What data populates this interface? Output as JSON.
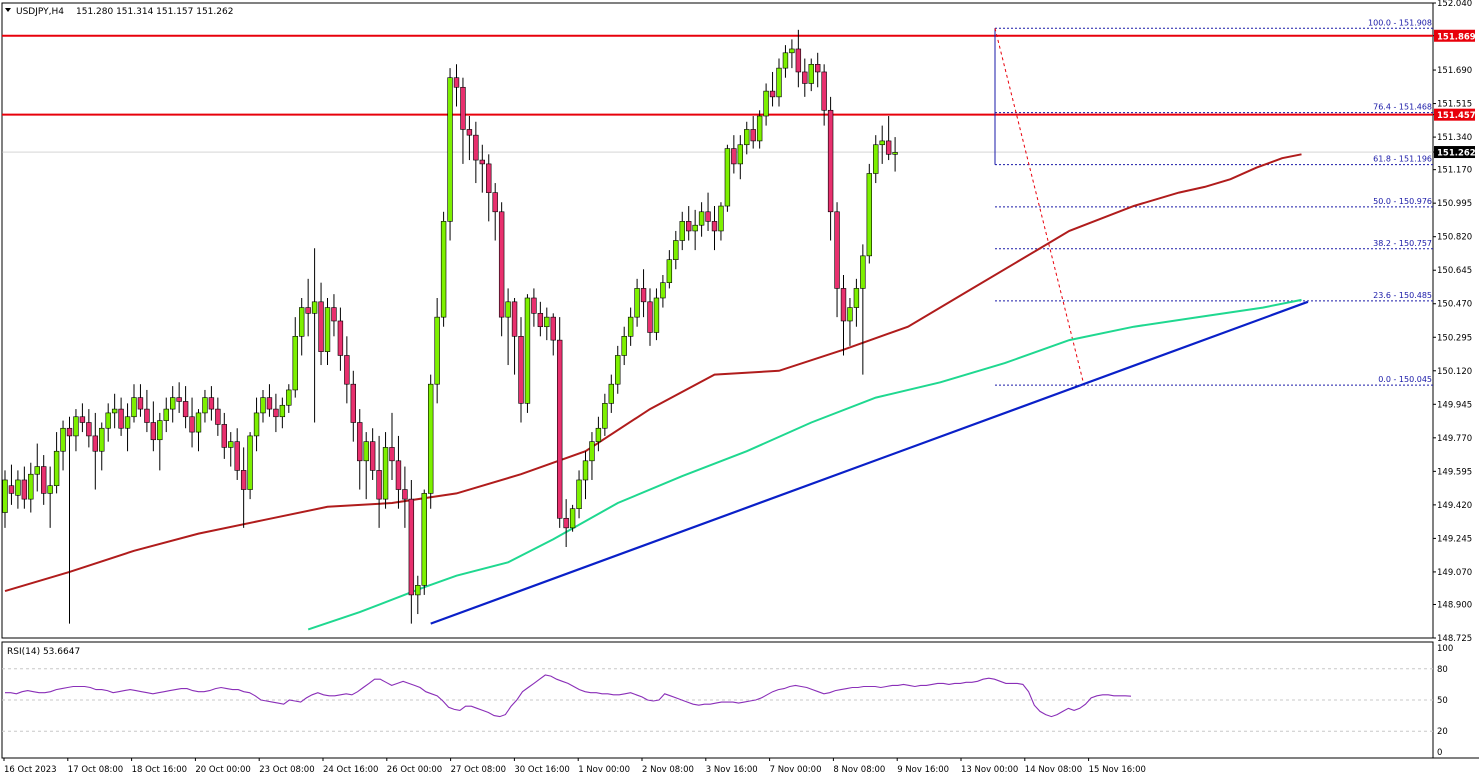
{
  "header": {
    "symbol": "USDJPY,H4",
    "ohlc": "151.280 151.314 151.157 151.262"
  },
  "rsi": {
    "label": "RSI(14) 53.6647",
    "levels": [
      "100",
      "80",
      "50",
      "20",
      "0"
    ],
    "values": [
      57,
      57,
      56,
      58,
      59,
      58,
      57,
      57,
      58,
      60,
      61,
      62,
      63,
      63,
      63,
      62,
      60,
      60,
      59,
      57,
      58,
      59,
      60,
      59,
      58,
      57,
      56,
      57,
      58,
      59,
      60,
      61,
      61,
      59,
      58,
      58,
      59,
      61,
      62,
      61,
      60,
      60,
      58,
      57,
      54,
      50,
      49,
      48,
      47,
      46,
      50,
      49,
      48,
      52,
      55,
      57,
      55,
      54,
      54,
      55,
      56,
      55,
      58,
      62,
      66,
      70,
      70,
      67,
      64,
      66,
      68,
      66,
      64,
      62,
      58,
      56,
      54,
      49,
      43,
      41,
      40,
      44,
      44,
      42,
      40,
      38,
      35,
      34,
      36,
      44,
      50,
      58,
      62,
      66,
      70,
      74,
      73,
      70,
      68,
      66,
      63,
      60,
      58,
      57,
      57,
      56,
      56,
      55,
      55,
      56,
      57,
      55,
      53,
      50,
      49,
      50,
      56,
      54,
      52,
      50,
      48,
      46,
      45,
      46,
      46,
      47,
      48,
      48,
      48,
      47,
      48,
      49,
      50,
      52,
      55,
      58,
      60,
      61,
      63,
      64,
      63,
      62,
      60,
      58,
      56,
      57,
      59,
      60,
      61,
      62,
      62,
      63,
      63,
      63,
      62,
      63,
      64,
      64,
      65,
      64,
      63,
      64,
      64,
      65,
      66,
      66,
      65,
      66,
      66,
      67,
      67,
      68,
      70,
      71,
      70,
      68,
      66,
      66,
      66,
      65,
      58,
      45,
      39,
      36,
      34,
      36,
      39,
      42,
      40,
      42,
      46,
      52,
      54,
      55,
      55,
      54,
      54,
      54,
      53.66
    ]
  },
  "chart_data": {
    "type": "candlestick",
    "symbol": "USDJPY",
    "timeframe": "H4",
    "ylim": [
      148.725,
      152.04
    ],
    "y_ticks": [
      "152.040",
      "151.869",
      "151.690",
      "151.515",
      "151.457",
      "151.340",
      "151.262",
      "151.170",
      "150.995",
      "150.820",
      "150.645",
      "150.470",
      "150.295",
      "150.120",
      "149.945",
      "149.770",
      "149.595",
      "149.420",
      "149.245",
      "149.070",
      "148.900",
      "148.725"
    ],
    "x_labels": [
      "16 Oct 2023",
      "17 Oct 08:00",
      "18 Oct 16:00",
      "20 Oct 00:00",
      "23 Oct 08:00",
      "24 Oct 16:00",
      "26 Oct 00:00",
      "27 Oct 08:00",
      "30 Oct 16:00",
      "1 Nov 00:00",
      "2 Nov 08:00",
      "3 Nov 16:00",
      "7 Nov 00:00",
      "8 Nov 08:00",
      "9 Nov 16:00",
      "13 Nov 00:00",
      "14 Nov 08:00",
      "15 Nov 16:00"
    ],
    "levels": [
      {
        "price": 151.869,
        "label": "151.869",
        "color": "#e8000b"
      },
      {
        "price": 151.457,
        "label": "151.457",
        "color": "#e8000b"
      },
      {
        "price": 151.262,
        "label": "151.262",
        "color": "#000000"
      }
    ],
    "fibonacci": [
      {
        "level": "100.0",
        "price": 151.908,
        "text": "100.0 - 151.908"
      },
      {
        "level": "76.4",
        "price": 151.468,
        "text": "76.4 - 151.468"
      },
      {
        "level": "61.8",
        "price": 151.196,
        "text": "61.8 - 151.196"
      },
      {
        "level": "50.0",
        "price": 150.976,
        "text": "50.0 - 150.976"
      },
      {
        "level": "38.2",
        "price": 150.757,
        "text": "38.2 - 150.757"
      },
      {
        "level": "23.6",
        "price": 150.485,
        "text": "23.6 - 150.485"
      },
      {
        "level": "0.0",
        "price": 150.045,
        "text": "0.0 - 150.045"
      }
    ],
    "trendline": {
      "from": {
        "bar": 66,
        "price": 148.8
      },
      "to": {
        "bar": 202,
        "price": 150.48
      },
      "color": "#0a20c8"
    },
    "ma_slow": {
      "color": "#b01c1c",
      "points": [
        [
          0,
          148.97
        ],
        [
          10,
          149.07
        ],
        [
          20,
          149.18
        ],
        [
          30,
          149.27
        ],
        [
          40,
          149.34
        ],
        [
          50,
          149.41
        ],
        [
          60,
          149.43
        ],
        [
          70,
          149.48
        ],
        [
          80,
          149.58
        ],
        [
          90,
          149.7
        ],
        [
          100,
          149.92
        ],
        [
          110,
          150.1
        ],
        [
          120,
          150.12
        ],
        [
          130,
          150.23
        ],
        [
          140,
          150.35
        ],
        [
          150,
          150.55
        ],
        [
          160,
          150.75
        ],
        [
          165,
          150.85
        ],
        [
          175,
          150.98
        ],
        [
          182,
          151.05
        ],
        [
          186,
          151.08
        ],
        [
          190,
          151.12
        ],
        [
          194,
          151.18
        ],
        [
          198,
          151.23
        ],
        [
          201,
          151.25
        ]
      ]
    },
    "ma_fast": {
      "color": "#1fd890",
      "points": [
        [
          47,
          148.77
        ],
        [
          55,
          148.86
        ],
        [
          65,
          148.99
        ],
        [
          70,
          149.05
        ],
        [
          78,
          149.12
        ],
        [
          85,
          149.24
        ],
        [
          95,
          149.43
        ],
        [
          105,
          149.57
        ],
        [
          115,
          149.7
        ],
        [
          125,
          149.85
        ],
        [
          135,
          149.98
        ],
        [
          145,
          150.06
        ],
        [
          155,
          150.16
        ],
        [
          165,
          150.28
        ],
        [
          175,
          150.35
        ],
        [
          185,
          150.4
        ],
        [
          195,
          150.45
        ],
        [
          201,
          150.49
        ]
      ]
    },
    "candles": [
      [
        149.38,
        149.6,
        149.3,
        149.55
      ],
      [
        149.52,
        149.63,
        149.42,
        149.48
      ],
      [
        149.47,
        149.6,
        149.4,
        149.55
      ],
      [
        149.55,
        149.62,
        149.4,
        149.45
      ],
      [
        149.45,
        149.64,
        149.38,
        149.58
      ],
      [
        149.58,
        149.74,
        149.49,
        149.62
      ],
      [
        149.62,
        149.68,
        149.42,
        149.48
      ],
      [
        149.48,
        149.62,
        149.3,
        149.52
      ],
      [
        149.52,
        149.8,
        149.48,
        149.7
      ],
      [
        149.7,
        149.86,
        149.6,
        149.82
      ],
      [
        149.82,
        149.88,
        148.8,
        149.78
      ],
      [
        149.78,
        149.92,
        149.7,
        149.88
      ],
      [
        149.88,
        149.95,
        149.8,
        149.85
      ],
      [
        149.85,
        149.92,
        149.72,
        149.78
      ],
      [
        149.78,
        149.9,
        149.5,
        149.7
      ],
      [
        149.7,
        149.85,
        149.6,
        149.82
      ],
      [
        149.82,
        149.95,
        149.75,
        149.9
      ],
      [
        149.9,
        150.0,
        149.82,
        149.92
      ],
      [
        149.92,
        149.98,
        149.78,
        149.82
      ],
      [
        149.82,
        149.95,
        149.7,
        149.88
      ],
      [
        149.88,
        150.05,
        149.85,
        149.98
      ],
      [
        149.98,
        150.05,
        149.88,
        149.92
      ],
      [
        149.92,
        150.02,
        149.8,
        149.85
      ],
      [
        149.85,
        149.96,
        149.7,
        149.76
      ],
      [
        149.76,
        149.9,
        149.6,
        149.86
      ],
      [
        149.86,
        149.98,
        149.8,
        149.92
      ],
      [
        149.92,
        150.04,
        149.85,
        149.98
      ],
      [
        149.98,
        150.06,
        149.9,
        149.96
      ],
      [
        149.96,
        150.04,
        149.82,
        149.88
      ],
      [
        149.88,
        149.98,
        149.72,
        149.8
      ],
      [
        149.8,
        149.92,
        149.7,
        149.9
      ],
      [
        149.9,
        150.02,
        149.85,
        149.98
      ],
      [
        149.98,
        150.04,
        149.86,
        149.92
      ],
      [
        149.92,
        149.98,
        149.78,
        149.84
      ],
      [
        149.84,
        149.9,
        149.66,
        149.72
      ],
      [
        149.72,
        149.8,
        149.62,
        149.75
      ],
      [
        149.75,
        149.82,
        149.55,
        149.6
      ],
      [
        149.6,
        149.72,
        149.3,
        149.5
      ],
      [
        149.5,
        149.8,
        149.45,
        149.78
      ],
      [
        149.78,
        149.98,
        149.7,
        149.9
      ],
      [
        149.9,
        150.02,
        149.85,
        149.98
      ],
      [
        149.98,
        150.05,
        149.88,
        149.92
      ],
      [
        149.92,
        150.0,
        149.8,
        149.88
      ],
      [
        149.88,
        149.98,
        149.82,
        149.94
      ],
      [
        149.94,
        150.05,
        149.9,
        150.02
      ],
      [
        150.02,
        150.4,
        149.98,
        150.3
      ],
      [
        150.3,
        150.5,
        150.2,
        150.45
      ],
      [
        150.45,
        150.6,
        150.3,
        150.42
      ],
      [
        150.42,
        150.76,
        149.85,
        150.48
      ],
      [
        150.48,
        150.58,
        150.15,
        150.22
      ],
      [
        150.22,
        150.5,
        150.15,
        150.45
      ],
      [
        150.45,
        150.52,
        150.3,
        150.38
      ],
      [
        150.38,
        150.45,
        150.12,
        150.2
      ],
      [
        150.2,
        150.3,
        149.95,
        150.05
      ],
      [
        150.05,
        150.12,
        149.75,
        149.85
      ],
      [
        149.85,
        149.92,
        149.5,
        149.65
      ],
      [
        149.65,
        149.8,
        149.45,
        149.75
      ],
      [
        149.75,
        149.82,
        149.55,
        149.6
      ],
      [
        149.6,
        149.78,
        149.3,
        149.45
      ],
      [
        149.45,
        149.8,
        149.4,
        149.72
      ],
      [
        149.72,
        149.9,
        149.55,
        149.65
      ],
      [
        149.65,
        149.78,
        149.4,
        149.5
      ],
      [
        149.5,
        149.62,
        149.3,
        149.45
      ],
      [
        149.45,
        149.55,
        148.8,
        148.95
      ],
      [
        148.95,
        149.05,
        148.85,
        149.0
      ],
      [
        149.0,
        149.5,
        148.95,
        149.48
      ],
      [
        149.48,
        150.1,
        149.4,
        150.05
      ],
      [
        150.05,
        150.5,
        149.95,
        150.4
      ],
      [
        150.4,
        150.95,
        150.35,
        150.9
      ],
      [
        150.9,
        151.7,
        150.8,
        151.65
      ],
      [
        151.65,
        151.72,
        151.5,
        151.6
      ],
      [
        151.6,
        151.65,
        151.2,
        151.38
      ],
      [
        151.38,
        151.45,
        151.22,
        151.35
      ],
      [
        151.35,
        151.42,
        151.1,
        151.22
      ],
      [
        151.22,
        151.3,
        151.05,
        151.2
      ],
      [
        151.2,
        151.25,
        150.9,
        151.05
      ],
      [
        151.05,
        151.1,
        150.8,
        150.95
      ],
      [
        150.95,
        151.0,
        150.3,
        150.4
      ],
      [
        150.4,
        150.55,
        150.15,
        150.48
      ],
      [
        150.48,
        150.5,
        150.1,
        150.3
      ],
      [
        150.3,
        150.4,
        149.85,
        149.95
      ],
      [
        149.95,
        150.52,
        149.9,
        150.5
      ],
      [
        150.5,
        150.55,
        150.35,
        150.42
      ],
      [
        150.42,
        150.48,
        150.3,
        150.35
      ],
      [
        150.35,
        150.45,
        150.28,
        150.4
      ],
      [
        150.4,
        150.42,
        150.2,
        150.28
      ],
      [
        150.28,
        150.4,
        149.3,
        149.35
      ],
      [
        149.35,
        149.45,
        149.2,
        149.3
      ],
      [
        149.3,
        149.42,
        149.28,
        149.4
      ],
      [
        149.4,
        149.6,
        149.35,
        149.55
      ],
      [
        149.55,
        149.7,
        149.45,
        149.65
      ],
      [
        149.65,
        149.8,
        149.55,
        149.75
      ],
      [
        149.75,
        149.88,
        149.7,
        149.82
      ],
      [
        149.82,
        150.0,
        149.78,
        149.95
      ],
      [
        149.95,
        150.1,
        149.9,
        150.05
      ],
      [
        150.05,
        150.25,
        150.0,
        150.2
      ],
      [
        150.2,
        150.35,
        150.15,
        150.3
      ],
      [
        150.3,
        150.45,
        150.25,
        150.4
      ],
      [
        150.4,
        150.6,
        150.35,
        150.55
      ],
      [
        150.55,
        150.65,
        150.4,
        150.48
      ],
      [
        150.48,
        150.55,
        150.25,
        150.32
      ],
      [
        150.32,
        150.55,
        150.28,
        150.5
      ],
      [
        150.5,
        150.62,
        150.45,
        150.58
      ],
      [
        150.58,
        150.75,
        150.55,
        150.7
      ],
      [
        150.7,
        150.85,
        150.65,
        150.8
      ],
      [
        150.8,
        150.95,
        150.75,
        150.9
      ],
      [
        150.9,
        150.98,
        150.8,
        150.85
      ],
      [
        150.85,
        150.96,
        150.75,
        150.88
      ],
      [
        150.88,
        151.0,
        150.82,
        150.95
      ],
      [
        150.95,
        151.05,
        150.85,
        150.9
      ],
      [
        150.9,
        150.98,
        150.75,
        150.85
      ],
      [
        150.85,
        151.0,
        150.8,
        150.98
      ],
      [
        150.98,
        151.3,
        150.95,
        151.28
      ],
      [
        151.28,
        151.35,
        151.15,
        151.2
      ],
      [
        151.2,
        151.35,
        151.12,
        151.3
      ],
      [
        151.3,
        151.42,
        151.25,
        151.38
      ],
      [
        151.38,
        151.45,
        151.28,
        151.32
      ],
      [
        151.32,
        151.48,
        151.28,
        151.45
      ],
      [
        151.45,
        151.62,
        151.4,
        151.58
      ],
      [
        151.58,
        151.68,
        151.5,
        151.55
      ],
      [
        151.55,
        151.75,
        151.5,
        151.7
      ],
      [
        151.7,
        151.82,
        151.65,
        151.78
      ],
      [
        151.78,
        151.85,
        151.7,
        151.8
      ],
      [
        151.8,
        151.9,
        151.6,
        151.68
      ],
      [
        151.68,
        151.75,
        151.55,
        151.62
      ],
      [
        151.62,
        151.75,
        151.58,
        151.72
      ],
      [
        151.72,
        151.78,
        151.6,
        151.68
      ],
      [
        151.68,
        151.72,
        151.4,
        151.48
      ],
      [
        151.48,
        151.55,
        150.8,
        150.95
      ],
      [
        150.95,
        151.0,
        150.4,
        150.55
      ],
      [
        150.55,
        150.62,
        150.2,
        150.38
      ],
      [
        150.38,
        150.5,
        150.25,
        150.45
      ],
      [
        150.45,
        150.6,
        150.35,
        150.55
      ],
      [
        150.55,
        150.78,
        150.1,
        150.72
      ],
      [
        150.72,
        151.2,
        150.68,
        151.15
      ],
      [
        151.15,
        151.35,
        151.1,
        151.3
      ],
      [
        151.3,
        151.4,
        151.2,
        151.32
      ],
      [
        151.32,
        151.45,
        151.22,
        151.25
      ],
      [
        151.25,
        151.34,
        151.16,
        151.26
      ]
    ]
  }
}
